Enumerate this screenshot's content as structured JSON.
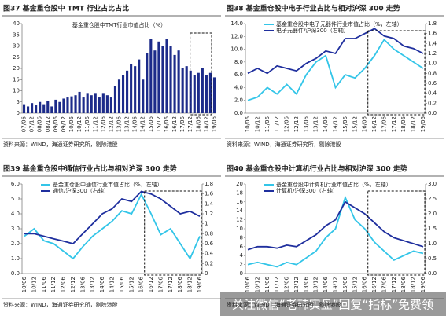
{
  "chart_data": [
    {
      "type": "bar",
      "title": "图37 基金重仓股中 TMT 行业占比占比",
      "source": "资料来源：WIND，海通证券研究所，剔除港股",
      "categories": [
        "07/06",
        null,
        "07/12",
        null,
        "08/06",
        null,
        "08/12",
        null,
        "09/06",
        null,
        "09/12",
        null,
        "10/06",
        null,
        "10/12",
        null,
        "11/06",
        null,
        "11/12",
        null,
        "12/06",
        null,
        "12/12",
        null,
        "13/06",
        null,
        "13/12",
        null,
        "14/06",
        null,
        "14/12",
        null,
        "15/06",
        null,
        "15/12",
        null,
        "16/06",
        null,
        "16/12",
        null,
        "17/06",
        null,
        "17/12",
        null,
        "18/06",
        null,
        "18/12",
        null,
        "19/06"
      ],
      "series": [
        {
          "name": "基金重仓股中TMT行业市值占比（%）",
          "color": "#1c2b8a",
          "values": [
            4,
            3,
            4.5,
            3.5,
            5,
            4,
            5.5,
            3,
            6,
            5,
            6.5,
            7,
            7.5,
            8,
            9.5,
            7,
            9,
            8,
            9,
            7,
            9,
            8,
            7,
            12,
            15,
            17,
            19,
            22,
            21,
            24,
            15,
            27,
            33,
            28,
            32,
            30,
            33,
            30,
            26,
            28,
            20,
            21,
            19,
            17,
            18,
            20,
            17,
            18,
            16
          ]
        }
      ],
      "ylim": [
        0,
        40
      ],
      "yticks": [
        0,
        5,
        10,
        15,
        20,
        25,
        30,
        35,
        40
      ]
    },
    {
      "type": "line",
      "title": "图38 基金重仓股中电子行业占比与相对沪深 300 走势",
      "source": "资料来源：WIND，海通证券研究所，剔除港股",
      "categories": [
        "10/06",
        "10/12",
        "11/06",
        "11/12",
        "12/06",
        "12/12",
        "13/06",
        "13/12",
        "14/06",
        "14/12",
        "15/06",
        "15/12",
        "16/06",
        "16/12",
        "17/06",
        "17/12",
        "18/06",
        "18/12",
        "19/06"
      ],
      "series": [
        {
          "name": "基金重仓股中电子元器件行业市值占比（%，左轴）",
          "color": "#33c5e8",
          "axis": "y",
          "values": [
            2,
            2.5,
            4,
            3,
            4.5,
            3,
            6,
            8,
            9,
            4,
            6,
            5.5,
            7,
            9,
            11.5,
            10,
            9,
            8,
            7
          ]
        },
        {
          "name": "电子元器件/沪深300（右轴）",
          "color": "#1f2f9e",
          "axis": "y2",
          "values": [
            0.8,
            0.9,
            0.8,
            0.95,
            0.9,
            0.85,
            1.0,
            1.1,
            1.25,
            1.2,
            1.5,
            1.5,
            1.6,
            1.7,
            1.55,
            1.5,
            1.35,
            1.3,
            1.2
          ]
        }
      ],
      "ylim": [
        0,
        14
      ],
      "yticks": [
        {
          "value": 0,
          "label": "0.0"
        },
        {
          "value": 2,
          "label": "2.0"
        },
        {
          "value": 4,
          "label": "4.0"
        },
        {
          "value": 6,
          "label": "6.0"
        },
        {
          "value": 8,
          "label": "8.0"
        },
        {
          "value": 10,
          "label": "10.0"
        },
        {
          "value": 12,
          "label": "12.0"
        },
        {
          "value": 14,
          "label": "14.0"
        }
      ],
      "y2lim": [
        0,
        1.8
      ],
      "y2ticks": [
        {
          "value": 0,
          "label": "0.0"
        },
        0.2,
        0.4,
        0.6,
        0.8,
        {
          "value": 1,
          "label": "1.0"
        },
        1.2,
        1.4,
        1.6,
        1.8
      ]
    },
    {
      "type": "line",
      "title": "图39 基金重仓股中通信行业占比与相对沪深 300 走势",
      "source": "资料来源：WIND，海通证券研究所，剔除港股",
      "categories": [
        "10/06",
        "10/12",
        "11/06",
        "11/12",
        "12/06",
        "12/12",
        "13/06",
        "13/12",
        "14/06",
        "14/12",
        "15/06",
        "15/12",
        "16/06",
        "16/12",
        "17/06",
        "17/12",
        "18/06",
        "18/12",
        "19/06"
      ],
      "series": [
        {
          "name": "基金重仓股中通信行业市值占比（%，左轴）",
          "color": "#33c5e8",
          "axis": "y",
          "values": [
            2.5,
            3,
            2.2,
            2,
            1.5,
            1.0,
            1.8,
            2.5,
            3.0,
            3.5,
            4.2,
            4.0,
            5.3,
            4.0,
            2.6,
            3.0,
            2.0,
            1.0,
            2.5
          ]
        },
        {
          "name": "通信/沪深300（右轴）",
          "color": "#1f2f9e",
          "axis": "y2",
          "values": [
            0.8,
            0.8,
            0.75,
            0.7,
            0.65,
            0.6,
            0.8,
            1.0,
            1.2,
            1.3,
            1.5,
            1.45,
            1.65,
            1.6,
            1.5,
            1.35,
            1.2,
            1.25,
            1.15
          ]
        }
      ],
      "ylim": [
        0,
        6
      ],
      "yticks": [
        {
          "value": 0,
          "label": "0.0"
        },
        {
          "value": 1,
          "label": "1.0"
        },
        {
          "value": 2,
          "label": "2.0"
        },
        {
          "value": 3,
          "label": "3.0"
        },
        {
          "value": 4,
          "label": "4.0"
        },
        {
          "value": 5,
          "label": "5.0"
        },
        {
          "value": 6,
          "label": "6.0"
        }
      ],
      "y2lim": [
        0,
        1.8
      ],
      "y2ticks": [
        0,
        0.2,
        0.4,
        0.6,
        0.8,
        1,
        1.2,
        1.4,
        1.6,
        1.8
      ]
    },
    {
      "type": "line",
      "title": "图40 基金重仓股中计算机行业占比与相对沪深 300 走势",
      "source": "资料来源：WIND，海通证券研究所，剔除港股",
      "categories": [
        "10/06",
        "10/12",
        "11/06",
        "11/12",
        "12/06",
        "12/12",
        "13/06",
        "13/12",
        "14/06",
        "14/12",
        "15/06",
        "15/12",
        "16/06",
        "16/12",
        "17/06",
        "17/12",
        "18/06",
        "18/12",
        "19/06"
      ],
      "series": [
        {
          "name": "基金重仓股中计算机行业市值占比（%，左轴）",
          "color": "#33c5e8",
          "axis": "y",
          "values": [
            2,
            2.5,
            2,
            1.5,
            2.5,
            2,
            3.5,
            5,
            8,
            10,
            17,
            12,
            10,
            7,
            5,
            3,
            4,
            5,
            4.5
          ]
        },
        {
          "name": "计算机/沪深300（右轴）",
          "color": "#1f2f9e",
          "axis": "y2",
          "values": [
            0.8,
            0.9,
            0.9,
            0.85,
            0.95,
            0.9,
            1.1,
            1.3,
            1.6,
            1.8,
            2.4,
            2.2,
            2.0,
            1.7,
            1.4,
            1.2,
            1.1,
            1.0,
            0.9
          ]
        }
      ],
      "ylim": [
        0,
        20
      ],
      "yticks": [
        0,
        2,
        4,
        6,
        8,
        10,
        12,
        14,
        16,
        18,
        20
      ],
      "y2lim": [
        0,
        3
      ],
      "y2ticks": [
        {
          "value": 0,
          "label": "0.0"
        },
        0.5,
        {
          "value": 1,
          "label": "1.0"
        },
        1.5,
        {
          "value": 2,
          "label": "2.0"
        },
        2.5,
        {
          "value": 3,
          "label": "3.0"
        }
      ]
    }
  ],
  "watermark": "关注微信“老韩实盘”回复“指标”免费领"
}
